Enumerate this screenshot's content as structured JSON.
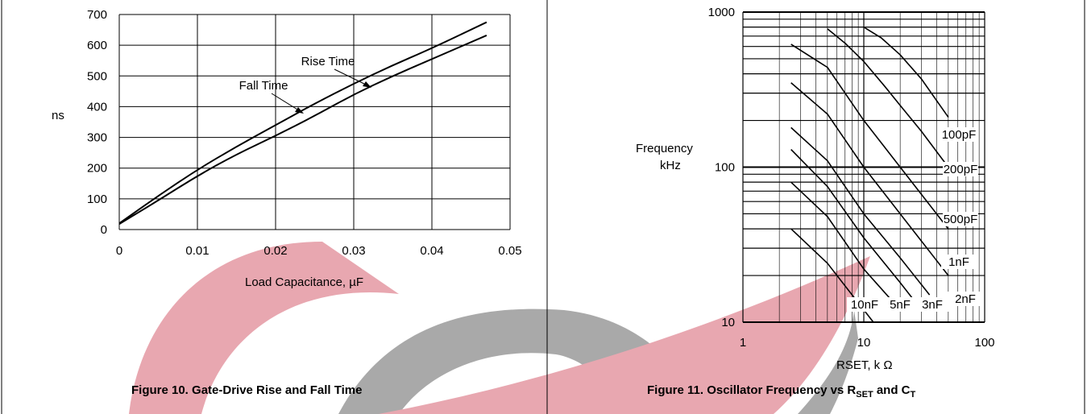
{
  "watermark": {
    "name": "logo-watermark",
    "colors": [
      "#e8a7b0",
      "#a9a9a9"
    ]
  },
  "chart_data": [
    {
      "type": "line",
      "title": "",
      "ylabel": "ns",
      "xlabel": "Load Capacitance, µF",
      "caption": "Figure 10. Gate-Drive Rise and Fall Time",
      "xlim": [
        0,
        0.05
      ],
      "ylim": [
        0,
        700
      ],
      "x_ticks": [
        0,
        0.01,
        0.02,
        0.03,
        0.04,
        0.05
      ],
      "x_tick_labels": [
        "0",
        "0.01",
        "0.02",
        "0.03",
        "0.04",
        "0.05"
      ],
      "y_ticks": [
        0,
        100,
        200,
        300,
        400,
        500,
        600,
        700
      ],
      "y_tick_labels": [
        "0",
        "100",
        "200",
        "300",
        "400",
        "500",
        "600",
        "700"
      ],
      "grid": true,
      "series": [
        {
          "name": "Rise Time",
          "x": [
            0,
            0.005,
            0.01,
            0.015,
            0.02,
            0.025,
            0.03,
            0.035,
            0.04,
            0.047
          ],
          "values": [
            20,
            110,
            195,
            270,
            340,
            410,
            475,
            535,
            590,
            675
          ]
        },
        {
          "name": "Fall Time",
          "x": [
            0,
            0.005,
            0.01,
            0.015,
            0.02,
            0.025,
            0.03,
            0.035,
            0.04,
            0.047
          ],
          "values": [
            18,
            95,
            175,
            245,
            305,
            370,
            440,
            500,
            555,
            632
          ]
        }
      ],
      "annotations": [
        {
          "text": "Rise Time",
          "points_to": "Rise Time",
          "x": 0.034,
          "y": 478
        },
        {
          "text": "Fall Time",
          "points_to": "Fall Time",
          "x": 0.023,
          "y": 382
        }
      ]
    },
    {
      "type": "line",
      "title": "",
      "ylabel": "Frequency kHz",
      "ylabel_lines": [
        "Frequency",
        "kHz"
      ],
      "xlabel": "RSET, k Ω",
      "caption": "Figure 11. Oscillator Frequency vs RSET and CT",
      "caption_parts": {
        "text": "Figure 11. Oscillator Frequency vs R",
        "sub1": "SET",
        "mid": " and C",
        "sub2": "T"
      },
      "xscale": "log",
      "yscale": "log",
      "xlim": [
        1,
        100
      ],
      "ylim": [
        10,
        1000
      ],
      "x_ticks": [
        1,
        10,
        100
      ],
      "x_tick_labels": [
        "1",
        "10",
        "100"
      ],
      "y_ticks": [
        10,
        100,
        1000
      ],
      "y_tick_labels": [
        "10",
        "100",
        "1000"
      ],
      "grid": true,
      "series": [
        {
          "name": "100pF",
          "x": [
            10,
            14,
            20,
            30,
            50
          ],
          "values": [
            800,
            680,
            530,
            370,
            210
          ]
        },
        {
          "name": "200pF",
          "x": [
            5,
            7,
            10,
            15,
            20,
            30,
            50
          ],
          "values": [
            780,
            630,
            480,
            330,
            250,
            170,
            100
          ]
        },
        {
          "name": "500pF",
          "x": [
            2.5,
            5,
            10,
            20,
            50
          ],
          "values": [
            620,
            440,
            200,
            100,
            40
          ]
        },
        {
          "name": "1nF",
          "x": [
            2.5,
            5,
            10,
            20,
            50
          ],
          "values": [
            350,
            220,
            100,
            50,
            20
          ]
        },
        {
          "name": "2nF",
          "x": [
            2.5,
            5,
            10,
            20,
            35
          ],
          "values": [
            180,
            110,
            50,
            26,
            15
          ]
        },
        {
          "name": "3nF",
          "x": [
            2.5,
            5,
            10,
            20,
            30
          ],
          "values": [
            130,
            75,
            35,
            18,
            12
          ]
        },
        {
          "name": "5nF",
          "x": [
            2.5,
            5,
            10,
            20
          ],
          "values": [
            80,
            48,
            22,
            12
          ]
        },
        {
          "name": "10nF",
          "x": [
            2.5,
            5,
            10,
            12
          ],
          "values": [
            40,
            24,
            12,
            10
          ]
        }
      ]
    }
  ]
}
